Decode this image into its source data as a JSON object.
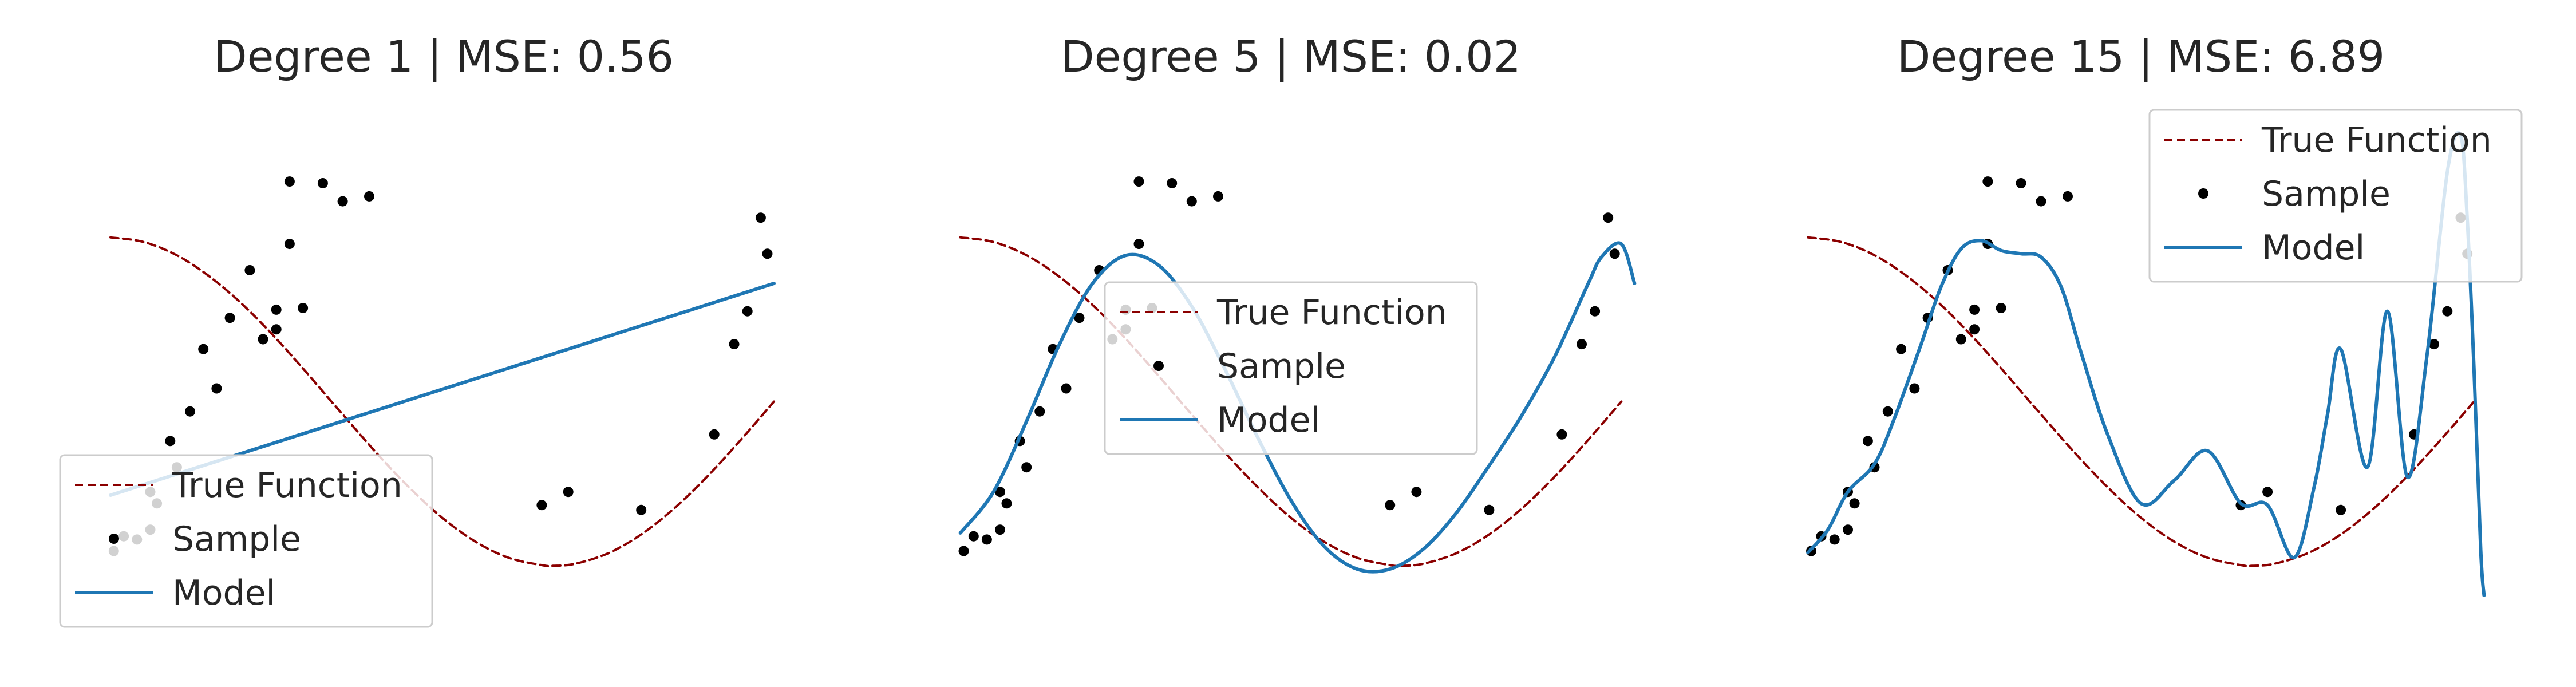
{
  "chart_data": [
    {
      "type": "line",
      "title": "Degree 1 | MSE: 0.56",
      "xlabel": "",
      "ylabel": "",
      "xlim": [
        -0.05,
        1.05
      ],
      "ylim": [
        -1.25,
        1.33
      ],
      "grid": false,
      "legend_position": "lower-left",
      "legend": [
        "True Function",
        "Sample",
        "Model"
      ],
      "series": [
        {
          "name": "True Function",
          "function": "cos(1.5*pi*x)",
          "color": "#8b0000",
          "style": "dashed",
          "x": [
            0.0,
            0.05,
            0.1,
            0.15,
            0.2,
            0.25,
            0.3,
            0.333,
            0.35,
            0.4,
            0.45,
            0.5,
            0.55,
            0.6,
            0.65,
            0.667,
            0.7,
            0.75,
            0.8,
            0.85,
            0.9,
            0.95,
            1.0
          ],
          "y": [
            1.0,
            0.972,
            0.891,
            0.76,
            0.588,
            0.383,
            0.156,
            0.0,
            -0.078,
            -0.309,
            -0.522,
            -0.707,
            -0.853,
            -0.951,
            -0.996,
            -1.0,
            -0.988,
            -0.924,
            -0.809,
            -0.649,
            -0.454,
            -0.233,
            0.0
          ]
        },
        {
          "name": "Sample",
          "color": "#000000",
          "style": "markers",
          "x": [
            0.005,
            0.02,
            0.04,
            0.06,
            0.06,
            0.07,
            0.09,
            0.1,
            0.12,
            0.14,
            0.16,
            0.18,
            0.21,
            0.23,
            0.25,
            0.25,
            0.27,
            0.27,
            0.29,
            0.32,
            0.35,
            0.39,
            0.65,
            0.69,
            0.8,
            0.91,
            0.94,
            0.96,
            0.98,
            0.99
          ],
          "y": [
            -0.91,
            -0.82,
            -0.84,
            -0.78,
            -0.55,
            -0.62,
            -0.24,
            -0.4,
            -0.06,
            0.32,
            0.08,
            0.51,
            0.8,
            0.38,
            0.44,
            0.56,
            0.96,
            1.34,
            0.57,
            1.33,
            1.22,
            1.25,
            -0.63,
            -0.55,
            -0.66,
            -0.2,
            0.35,
            0.55,
            1.12,
            0.9
          ]
        },
        {
          "name": "Model",
          "color": "#1f77b4",
          "style": "solid",
          "x": [
            0.0,
            1.0
          ],
          "y": [
            -0.57,
            0.72
          ]
        }
      ]
    },
    {
      "type": "line",
      "title": "Degree 5 | MSE: 0.02",
      "xlabel": "",
      "ylabel": "",
      "xlim": [
        -0.05,
        1.05
      ],
      "ylim": [
        -1.25,
        1.33
      ],
      "grid": false,
      "legend_position": "center",
      "legend": [
        "True Function",
        "Sample",
        "Model"
      ],
      "series": [
        {
          "name": "True Function",
          "function": "cos(1.5*pi*x)",
          "color": "#8b0000",
          "style": "dashed",
          "x": [
            0.0,
            0.05,
            0.1,
            0.15,
            0.2,
            0.25,
            0.3,
            0.333,
            0.35,
            0.4,
            0.45,
            0.5,
            0.55,
            0.6,
            0.65,
            0.667,
            0.7,
            0.75,
            0.8,
            0.85,
            0.9,
            0.95,
            1.0
          ],
          "y": [
            1.0,
            0.972,
            0.891,
            0.76,
            0.588,
            0.383,
            0.156,
            0.0,
            -0.078,
            -0.309,
            -0.522,
            -0.707,
            -0.853,
            -0.951,
            -0.996,
            -1.0,
            -0.988,
            -0.924,
            -0.809,
            -0.649,
            -0.454,
            -0.233,
            0.0
          ]
        },
        {
          "name": "Sample",
          "color": "#000000",
          "style": "markers",
          "x": [
            0.005,
            0.02,
            0.04,
            0.06,
            0.06,
            0.07,
            0.09,
            0.1,
            0.12,
            0.14,
            0.16,
            0.18,
            0.21,
            0.23,
            0.25,
            0.25,
            0.27,
            0.27,
            0.29,
            0.32,
            0.35,
            0.39,
            0.65,
            0.69,
            0.8,
            0.91,
            0.94,
            0.96,
            0.98,
            0.99
          ],
          "y": [
            -0.91,
            -0.82,
            -0.84,
            -0.78,
            -0.55,
            -0.62,
            -0.24,
            -0.4,
            -0.06,
            0.32,
            0.08,
            0.51,
            0.8,
            0.38,
            0.44,
            0.56,
            0.96,
            1.34,
            0.57,
            1.33,
            1.22,
            1.25,
            -0.63,
            -0.55,
            -0.66,
            -0.2,
            0.35,
            0.55,
            1.12,
            0.9
          ]
        },
        {
          "name": "Model",
          "color": "#1f77b4",
          "style": "solid",
          "x": [
            0.0,
            0.05,
            0.1,
            0.15,
            0.2,
            0.25,
            0.3,
            0.35,
            0.4,
            0.45,
            0.5,
            0.55,
            0.6,
            0.65,
            0.7,
            0.75,
            0.8,
            0.85,
            0.9,
            0.95,
            0.97,
            1.0,
            1.02
          ],
          "y": [
            -0.8,
            -0.55,
            -0.12,
            0.35,
            0.72,
            0.89,
            0.83,
            0.58,
            0.2,
            -0.22,
            -0.6,
            -0.88,
            -1.02,
            -1.02,
            -0.9,
            -0.68,
            -0.39,
            -0.08,
            0.28,
            0.72,
            0.88,
            0.96,
            0.72
          ]
        }
      ]
    },
    {
      "type": "line",
      "title": "Degree 15 | MSE: 6.89",
      "xlabel": "",
      "ylabel": "",
      "xlim": [
        -0.05,
        1.05
      ],
      "ylim": [
        -1.25,
        1.33
      ],
      "grid": false,
      "legend_position": "top-right",
      "legend": [
        "True Function",
        "Sample",
        "Model"
      ],
      "series": [
        {
          "name": "True Function",
          "function": "cos(1.5*pi*x)",
          "color": "#8b0000",
          "style": "dashed",
          "x": [
            0.0,
            0.05,
            0.1,
            0.15,
            0.2,
            0.25,
            0.3,
            0.333,
            0.35,
            0.4,
            0.45,
            0.5,
            0.55,
            0.6,
            0.65,
            0.667,
            0.7,
            0.75,
            0.8,
            0.85,
            0.9,
            0.95,
            1.0
          ],
          "y": [
            1.0,
            0.972,
            0.891,
            0.76,
            0.588,
            0.383,
            0.156,
            0.0,
            -0.078,
            -0.309,
            -0.522,
            -0.707,
            -0.853,
            -0.951,
            -0.996,
            -1.0,
            -0.988,
            -0.924,
            -0.809,
            -0.649,
            -0.454,
            -0.233,
            0.0
          ]
        },
        {
          "name": "Sample",
          "color": "#000000",
          "style": "markers",
          "x": [
            0.005,
            0.02,
            0.04,
            0.06,
            0.06,
            0.07,
            0.09,
            0.1,
            0.12,
            0.14,
            0.16,
            0.18,
            0.21,
            0.23,
            0.25,
            0.25,
            0.27,
            0.27,
            0.29,
            0.32,
            0.35,
            0.39,
            0.65,
            0.69,
            0.8,
            0.91,
            0.94,
            0.96,
            0.98,
            0.99
          ],
          "y": [
            -0.91,
            -0.82,
            -0.84,
            -0.78,
            -0.55,
            -0.62,
            -0.24,
            -0.4,
            -0.06,
            0.32,
            0.08,
            0.51,
            0.8,
            0.38,
            0.44,
            0.56,
            0.96,
            1.34,
            0.57,
            1.33,
            1.22,
            1.25,
            -0.63,
            -0.55,
            -0.66,
            -0.2,
            0.35,
            0.55,
            1.12,
            0.9
          ]
        },
        {
          "name": "Model",
          "color": "#1f77b4",
          "style": "solid",
          "x": [
            0.0,
            0.03,
            0.06,
            0.1,
            0.13,
            0.17,
            0.2,
            0.23,
            0.26,
            0.29,
            0.32,
            0.35,
            0.38,
            0.41,
            0.45,
            0.5,
            0.55,
            0.6,
            0.65,
            0.69,
            0.73,
            0.76,
            0.78,
            0.8,
            0.84,
            0.87,
            0.9,
            0.93,
            0.96,
            0.98,
            0.99,
            1.0,
            1.01,
            1.015
          ],
          "y": [
            -0.92,
            -0.78,
            -0.55,
            -0.38,
            -0.1,
            0.35,
            0.7,
            0.93,
            0.98,
            0.92,
            0.9,
            0.88,
            0.7,
            0.3,
            -0.2,
            -0.62,
            -0.48,
            -0.3,
            -0.62,
            -0.63,
            -0.95,
            -0.52,
            -0.08,
            0.32,
            -0.4,
            0.55,
            -0.46,
            0.3,
            1.4,
            1.62,
            1.1,
            0.2,
            -0.9,
            -1.18
          ]
        }
      ]
    }
  ]
}
